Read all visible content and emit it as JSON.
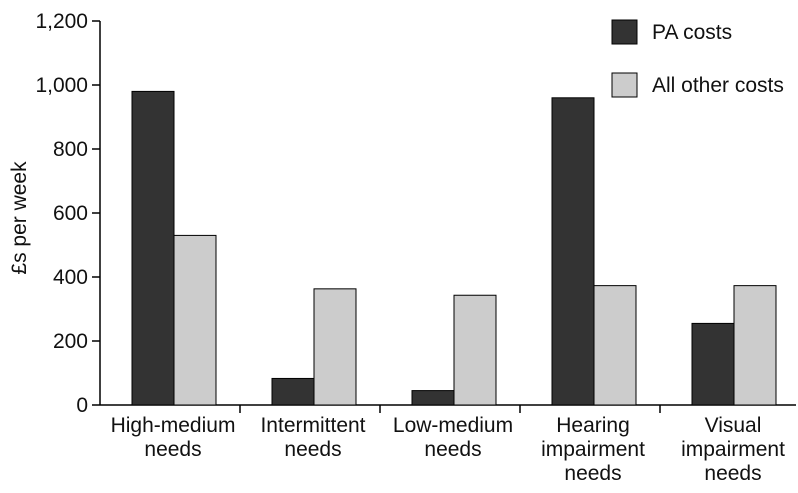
{
  "chart_data": {
    "type": "bar",
    "title": "",
    "xlabel": "",
    "ylabel": "£s per week",
    "ylim": [
      0,
      1200
    ],
    "yticks": [
      0,
      200,
      400,
      600,
      800,
      1000,
      1200
    ],
    "ytick_labels": [
      "0",
      "200",
      "400",
      "600",
      "800",
      "1,000",
      "1,200"
    ],
    "grid": false,
    "legend_position": "top-right",
    "categories": [
      [
        "High-medium",
        "needs"
      ],
      [
        "Intermittent",
        "needs"
      ],
      [
        "Low-medium",
        "needs"
      ],
      [
        "Hearing",
        "impairment",
        "needs"
      ],
      [
        "Visual",
        "impairment",
        "needs"
      ]
    ],
    "series": [
      {
        "name": "PA costs",
        "color": "#333333",
        "values": [
          980,
          83,
          45,
          960,
          255
        ]
      },
      {
        "name": "All other costs",
        "color": "#cccccc",
        "values": [
          530,
          363,
          343,
          373,
          373
        ]
      }
    ]
  }
}
